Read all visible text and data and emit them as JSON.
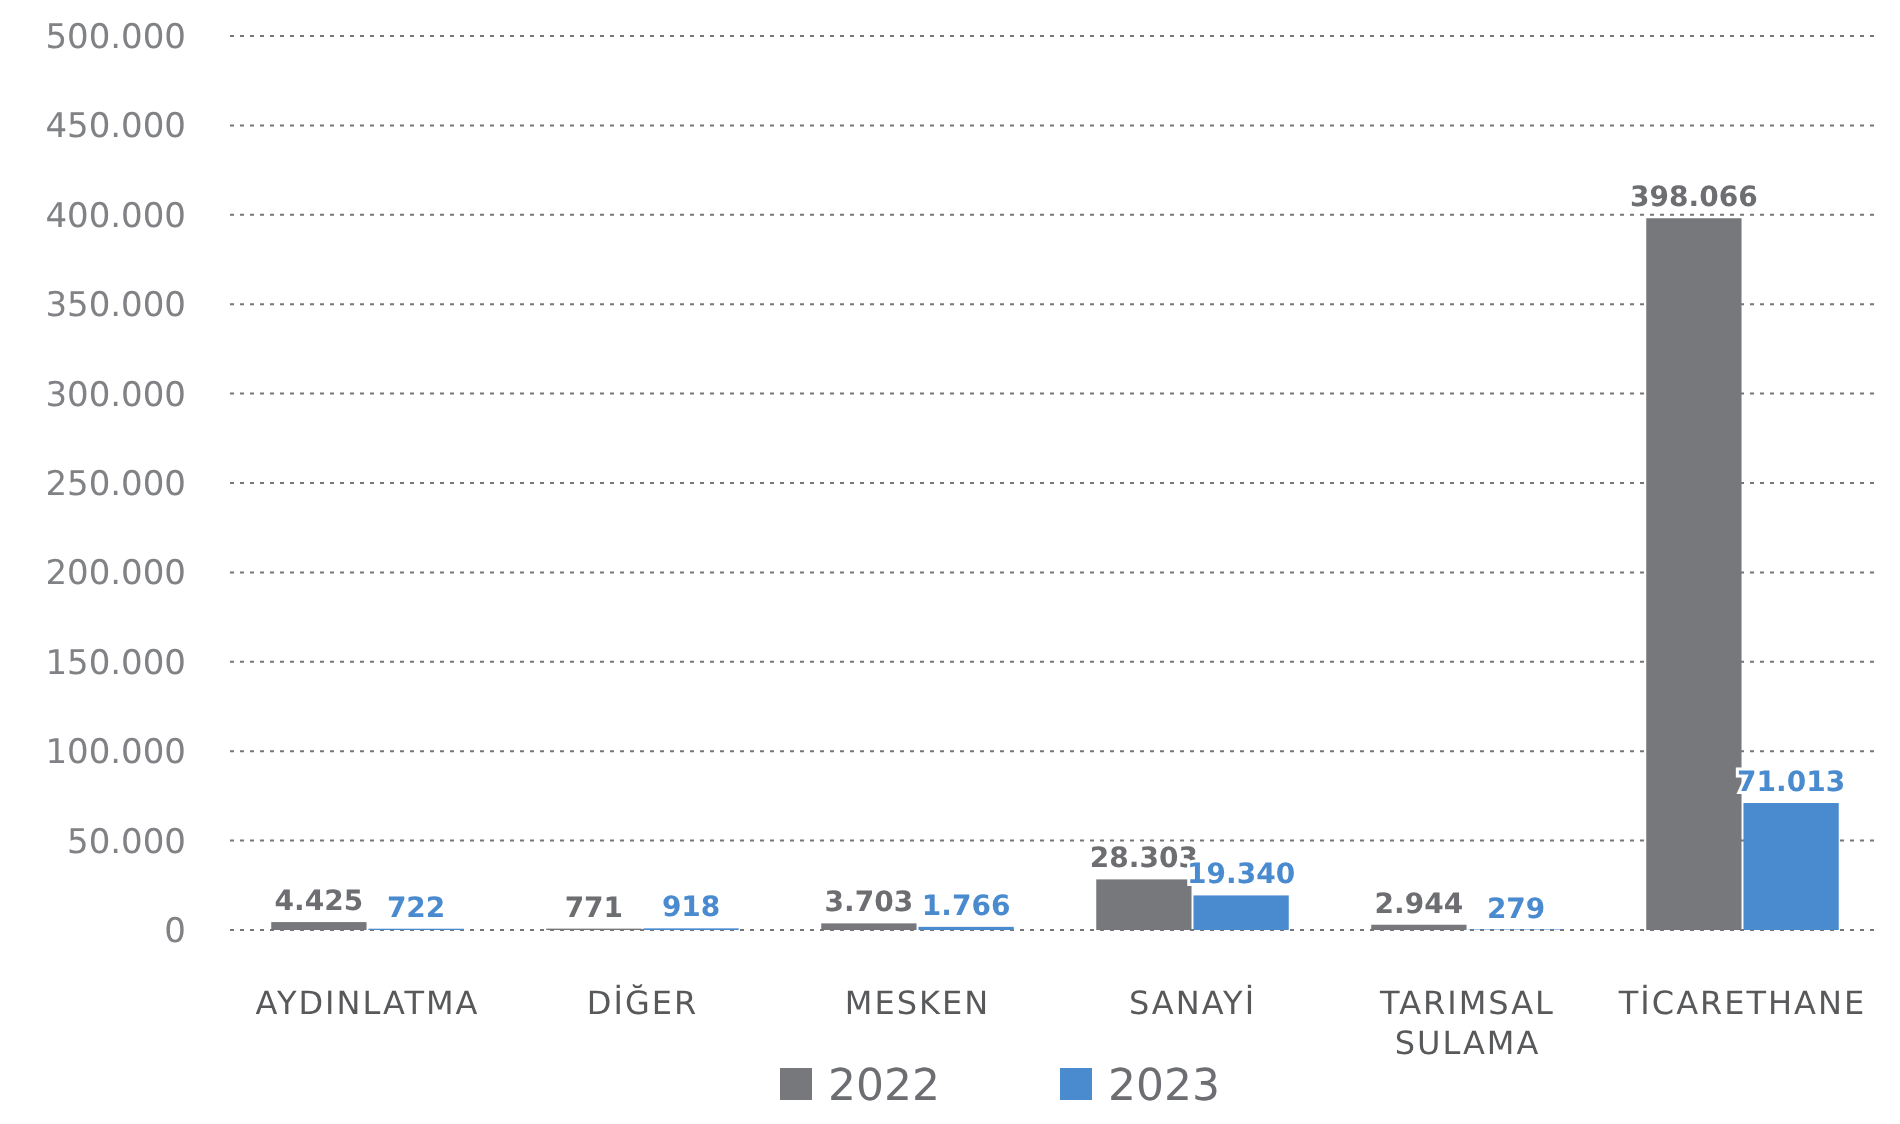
{
  "chart_data": {
    "type": "bar",
    "categories": [
      "AYDINLATMA",
      "DİĞER",
      "MESKEN",
      "SANAYİ",
      "TARIMSAL SULAMA",
      "TİCARETHANE"
    ],
    "series": [
      {
        "name": "2022",
        "color": "#77787b",
        "values": [
          4425,
          771,
          3703,
          28303,
          2944,
          398066
        ],
        "value_labels": [
          "4.425",
          "771",
          "3.703",
          "28.303",
          "2.944",
          "398.066"
        ]
      },
      {
        "name": "2023",
        "color": "#4a8bd0",
        "values": [
          722,
          918,
          1766,
          19340,
          279,
          71013
        ],
        "value_labels": [
          "722",
          "918",
          "1.766",
          "19.340",
          "279",
          "71.013"
        ]
      }
    ],
    "ylim": [
      0,
      500000
    ],
    "yticks": [
      0,
      {
        "value": 50000,
        "label": "50.000"
      },
      {
        "value": 100000,
        "label": "100.000"
      },
      {
        "value": 150000,
        "label": "150.000"
      },
      {
        "value": 200000,
        "label": "200.000"
      },
      {
        "value": 250000,
        "label": "250.000"
      },
      {
        "value": 300000,
        "label": "300.000"
      },
      {
        "value": 350000,
        "label": "350.000"
      },
      {
        "value": 400000,
        "label": "400.000"
      },
      {
        "value": 450000,
        "label": "450.000"
      },
      {
        "value": 500000,
        "label": "500.000"
      }
    ],
    "grid": "y",
    "line_style": "dotted",
    "legend": "bottom"
  }
}
